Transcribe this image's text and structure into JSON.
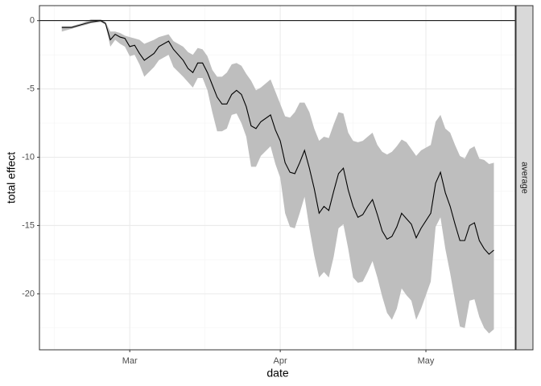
{
  "chart_data": {
    "type": "line",
    "xlabel": "date",
    "ylabel": "total effect",
    "facet": "average",
    "x": [
      -14,
      -12,
      -10,
      -8,
      -6,
      -5,
      -4,
      -3,
      -2,
      -1,
      0,
      1,
      2,
      3,
      5,
      6,
      8,
      9,
      11,
      12,
      13,
      14,
      15,
      16,
      17,
      18,
      19,
      20,
      21,
      22,
      23,
      24,
      25,
      26,
      27,
      29,
      30,
      31,
      32,
      33,
      34,
      35,
      36,
      37,
      38,
      39,
      40,
      41,
      42,
      43,
      44,
      45,
      46,
      47,
      48,
      49,
      50,
      51,
      52,
      53,
      54,
      55,
      56,
      57,
      58,
      59,
      60,
      62,
      63,
      64,
      65,
      66,
      67,
      68,
      69,
      70,
      71,
      72,
      73,
      74,
      75
    ],
    "values": [
      -0.5,
      -0.5,
      -0.3,
      -0.1,
      0,
      -0.2,
      -1.4,
      -1.0,
      -1.2,
      -1.3,
      -1.9,
      -1.8,
      -2.4,
      -2.9,
      -2.4,
      -1.9,
      -1.5,
      -2.1,
      -2.9,
      -3.5,
      -3.8,
      -3.1,
      -3.1,
      -3.8,
      -4.7,
      -5.6,
      -6.1,
      -6.1,
      -5.4,
      -5.1,
      -5.4,
      -6.3,
      -7.7,
      -7.9,
      -7.4,
      -6.9,
      -8.0,
      -8.8,
      -10.4,
      -11.1,
      -11.2,
      -10.4,
      -9.5,
      -10.8,
      -12.3,
      -14.1,
      -13.6,
      -13.9,
      -12.5,
      -11.2,
      -10.8,
      -12.4,
      -13.6,
      -14.4,
      -14.2,
      -13.6,
      -13.1,
      -14.2,
      -15.4,
      -16.0,
      -15.8,
      -15.1,
      -14.1,
      -14.5,
      -14.9,
      -15.9,
      -15.2,
      -14.1,
      -11.9,
      -11.1,
      -12.6,
      -13.6,
      -14.9,
      -16.1,
      -16.1,
      -15.0,
      -14.8,
      -16.1,
      -16.7,
      -17.1,
      -16.8
    ],
    "band": {
      "upper": [
        -0.4,
        -0.4,
        -0.2,
        0.1,
        0.1,
        -0.1,
        -0.8,
        -0.8,
        -0.9,
        -1.1,
        -1.2,
        -1.3,
        -1.4,
        -1.7,
        -1.4,
        -1.2,
        -1.0,
        -1.5,
        -1.9,
        -2.3,
        -2.5,
        -2.0,
        -2.1,
        -2.6,
        -3.6,
        -4.1,
        -4.1,
        -3.8,
        -3.2,
        -3.1,
        -3.3,
        -3.9,
        -4.4,
        -5.1,
        -4.9,
        -4.3,
        -5.2,
        -6.1,
        -7.0,
        -7.1,
        -6.7,
        -6.0,
        -6.0,
        -6.7,
        -7.9,
        -8.8,
        -8.5,
        -8.6,
        -7.6,
        -6.7,
        -6.8,
        -8.2,
        -8.8,
        -8.9,
        -8.8,
        -8.5,
        -8.2,
        -9.1,
        -9.6,
        -9.8,
        -9.6,
        -9.2,
        -8.7,
        -8.9,
        -9.4,
        -9.9,
        -9.5,
        -9.1,
        -7.4,
        -6.9,
        -7.9,
        -8.2,
        -9.1,
        -9.9,
        -10.1,
        -9.4,
        -9.2,
        -10.1,
        -10.2,
        -10.5,
        -10.4
      ],
      "lower": [
        -0.8,
        -0.6,
        -0.4,
        -0.2,
        -0.1,
        -0.3,
        -1.9,
        -1.4,
        -1.7,
        -1.9,
        -2.6,
        -2.5,
        -3.2,
        -4.1,
        -3.4,
        -2.9,
        -2.5,
        -3.4,
        -4.1,
        -4.5,
        -4.9,
        -4.2,
        -4.2,
        -5.1,
        -6.7,
        -8.1,
        -8.1,
        -7.9,
        -6.9,
        -6.8,
        -7.5,
        -8.5,
        -10.7,
        -10.7,
        -9.9,
        -9.2,
        -10.5,
        -11.5,
        -14.1,
        -15.1,
        -15.2,
        -14.1,
        -12.9,
        -15.2,
        -17.2,
        -18.8,
        -18.4,
        -18.8,
        -17.3,
        -15.2,
        -14.9,
        -16.7,
        -18.8,
        -19.2,
        -19.1,
        -18.4,
        -17.6,
        -18.8,
        -20.2,
        -21.4,
        -21.9,
        -21.1,
        -19.6,
        -20.1,
        -20.5,
        -21.9,
        -21.1,
        -19.1,
        -15.1,
        -14.4,
        -16.7,
        -18.5,
        -20.5,
        -22.4,
        -22.5,
        -20.5,
        -20.4,
        -21.7,
        -22.5,
        -22.9,
        -22.6
      ],
      "color": "#bebebe"
    },
    "color": "#000000",
    "hline": 0,
    "xlim": [
      -18.6,
      79.4
    ],
    "xticks": [
      {
        "value": 0,
        "label": "Mar"
      },
      {
        "value": 31,
        "label": "Apr"
      },
      {
        "value": 61,
        "label": "May"
      }
    ],
    "ylim": [
      -24.1,
      1.1
    ],
    "yticks": [
      0,
      -5,
      -10,
      -15,
      -20
    ],
    "grid": true
  }
}
